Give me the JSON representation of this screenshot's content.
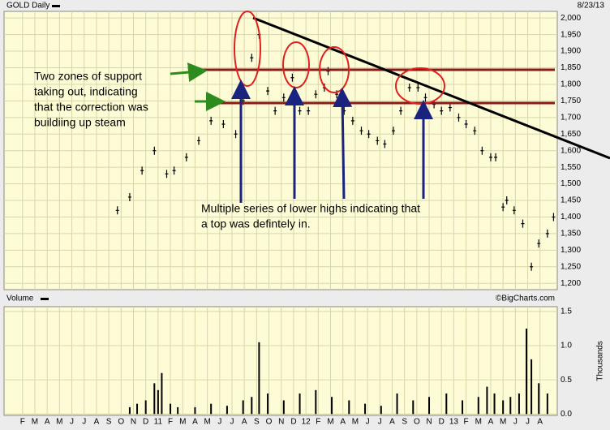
{
  "header": {
    "symbol": "GOLD Daily",
    "date": "8/23/13"
  },
  "chart_data": [
    {
      "type": "dash",
      "color": "#000000",
      "grid": true,
      "x": [
        7.7,
        8.7,
        9.7,
        10.7,
        11.7,
        12.3,
        13.3,
        14.3,
        15.3,
        16.3,
        17.3,
        17.9,
        18.6,
        19.2,
        19.9,
        20.5,
        21.2,
        21.9,
        22.5,
        23.2,
        23.8,
        24.5,
        24.8,
        25.5,
        26.1,
        26.8,
        27.5,
        28.1,
        28.8,
        29.4,
        30.1,
        30.7,
        31.4,
        32.1,
        32.7,
        33.4,
        34.0,
        34.7,
        35.4,
        36.0,
        36.7,
        37.3,
        38.0,
        38.4,
        39.0,
        39.3,
        39.9,
        40.6,
        41.3,
        41.9,
        42.6,
        43.1
      ],
      "values": [
        1420,
        1460,
        1540,
        1600,
        1530,
        1540,
        1580,
        1630,
        1690,
        1680,
        1650,
        1750,
        1880,
        1950,
        1780,
        1720,
        1760,
        1820,
        1720,
        1720,
        1770,
        1790,
        1840,
        1770,
        1720,
        1690,
        1660,
        1650,
        1630,
        1620,
        1660,
        1720,
        1790,
        1790,
        1760,
        1740,
        1720,
        1730,
        1700,
        1680,
        1660,
        1600,
        1580,
        1580,
        1430,
        1450,
        1420,
        1380,
        1250,
        1320,
        1350,
        1400
      ],
      "xlim": [
        -1.5,
        43.4
      ],
      "ylim": [
        1181,
        2020
      ],
      "yticks": [
        {
          "value": 1200,
          "label": "1,200"
        },
        {
          "value": 1250,
          "label": "1,250"
        },
        {
          "value": 1300,
          "label": "1,300"
        },
        {
          "value": 1350,
          "label": "1,350"
        },
        {
          "value": 1400,
          "label": "1,400"
        },
        {
          "value": 1450,
          "label": "1,450"
        },
        {
          "value": 1500,
          "label": "1,500"
        },
        {
          "value": 1550,
          "label": "1,550"
        },
        {
          "value": 1600,
          "label": "1,600"
        },
        {
          "value": 1650,
          "label": "1,650"
        },
        {
          "value": 1700,
          "label": "1,700"
        },
        {
          "value": 1750,
          "label": "1,750"
        },
        {
          "value": 1800,
          "label": "1,800"
        },
        {
          "value": 1850,
          "label": "1,850"
        },
        {
          "value": 1900,
          "label": "1,900"
        },
        {
          "value": 1950,
          "label": "1,950"
        },
        {
          "value": 2000,
          "label": "2,000"
        }
      ],
      "annotations": [
        [
          "Two zones of support",
          "taking out, indicating",
          "that the correction was",
          "buildiing up steam"
        ],
        [
          "Multiple series of lower highs indicating that",
          "a top was defintely in."
        ]
      ]
    },
    {
      "type": "bar",
      "title": "Volume",
      "y_label": "Thousands",
      "credit": "©BigCharts.com",
      "color": "#000000",
      "grid": true,
      "x": [
        8.7,
        9.3,
        10.0,
        10.7,
        11.0,
        11.3,
        12.0,
        12.6,
        14.0,
        15.3,
        16.6,
        17.9,
        18.6,
        19.2,
        19.9,
        21.2,
        22.5,
        23.8,
        25.1,
        26.5,
        27.8,
        29.1,
        30.4,
        31.7,
        33.0,
        34.4,
        35.7,
        37.0,
        37.7,
        38.3,
        39.0,
        39.6,
        40.3,
        40.9,
        41.3,
        41.9,
        42.6
      ],
      "values": [
        0.1,
        0.15,
        0.2,
        0.45,
        0.35,
        0.6,
        0.15,
        0.1,
        0.1,
        0.15,
        0.12,
        0.2,
        0.25,
        1.05,
        0.3,
        0.2,
        0.3,
        0.35,
        0.25,
        0.2,
        0.15,
        0.12,
        0.3,
        0.2,
        0.25,
        0.3,
        0.2,
        0.25,
        0.4,
        0.3,
        0.2,
        0.25,
        0.3,
        1.25,
        0.8,
        0.45,
        0.3
      ],
      "xlim": [
        -1.5,
        43.4
      ],
      "ylim": [
        -0.02,
        1.57
      ],
      "yticks": [
        {
          "value": 0,
          "label": "0.0"
        },
        {
          "value": 0.5,
          "label": "0.5"
        },
        {
          "value": 1,
          "label": "1.0"
        },
        {
          "value": 1.5,
          "label": "1.5"
        }
      ],
      "xticks": [
        {
          "value": 0,
          "label": "F"
        },
        {
          "value": 1,
          "label": "M"
        },
        {
          "value": 2,
          "label": "A"
        },
        {
          "value": 3,
          "label": "M"
        },
        {
          "value": 4,
          "label": "J"
        },
        {
          "value": 5,
          "label": "J"
        },
        {
          "value": 6,
          "label": "A"
        },
        {
          "value": 7,
          "label": "S"
        },
        {
          "value": 8,
          "label": "O"
        },
        {
          "value": 9,
          "label": "N"
        },
        {
          "value": 10,
          "label": "D"
        },
        {
          "value": 11,
          "label": "11"
        },
        {
          "value": 12,
          "label": "F"
        },
        {
          "value": 13,
          "label": "M"
        },
        {
          "value": 14,
          "label": "A"
        },
        {
          "value": 15,
          "label": "M"
        },
        {
          "value": 16,
          "label": "J"
        },
        {
          "value": 17,
          "label": "J"
        },
        {
          "value": 18,
          "label": "A"
        },
        {
          "value": 19,
          "label": "S"
        },
        {
          "value": 20,
          "label": "O"
        },
        {
          "value": 21,
          "label": "N"
        },
        {
          "value": 22,
          "label": "D"
        },
        {
          "value": 23,
          "label": "12"
        },
        {
          "value": 24,
          "label": "F"
        },
        {
          "value": 25,
          "label": "M"
        },
        {
          "value": 26,
          "label": "A"
        },
        {
          "value": 27,
          "label": "M"
        },
        {
          "value": 28,
          "label": "J"
        },
        {
          "value": 29,
          "label": "J"
        },
        {
          "value": 30,
          "label": "A"
        },
        {
          "value": 31,
          "label": "S"
        },
        {
          "value": 32,
          "label": "O"
        },
        {
          "value": 33,
          "label": "N"
        },
        {
          "value": 34,
          "label": "D"
        },
        {
          "value": 35,
          "label": "13"
        },
        {
          "value": 36,
          "label": "F"
        },
        {
          "value": 37,
          "label": "M"
        },
        {
          "value": 38,
          "label": "A"
        },
        {
          "value": 39,
          "label": "M"
        },
        {
          "value": 40,
          "label": "J"
        },
        {
          "value": 41,
          "label": "J"
        },
        {
          "value": 42,
          "label": "A"
        }
      ]
    }
  ]
}
